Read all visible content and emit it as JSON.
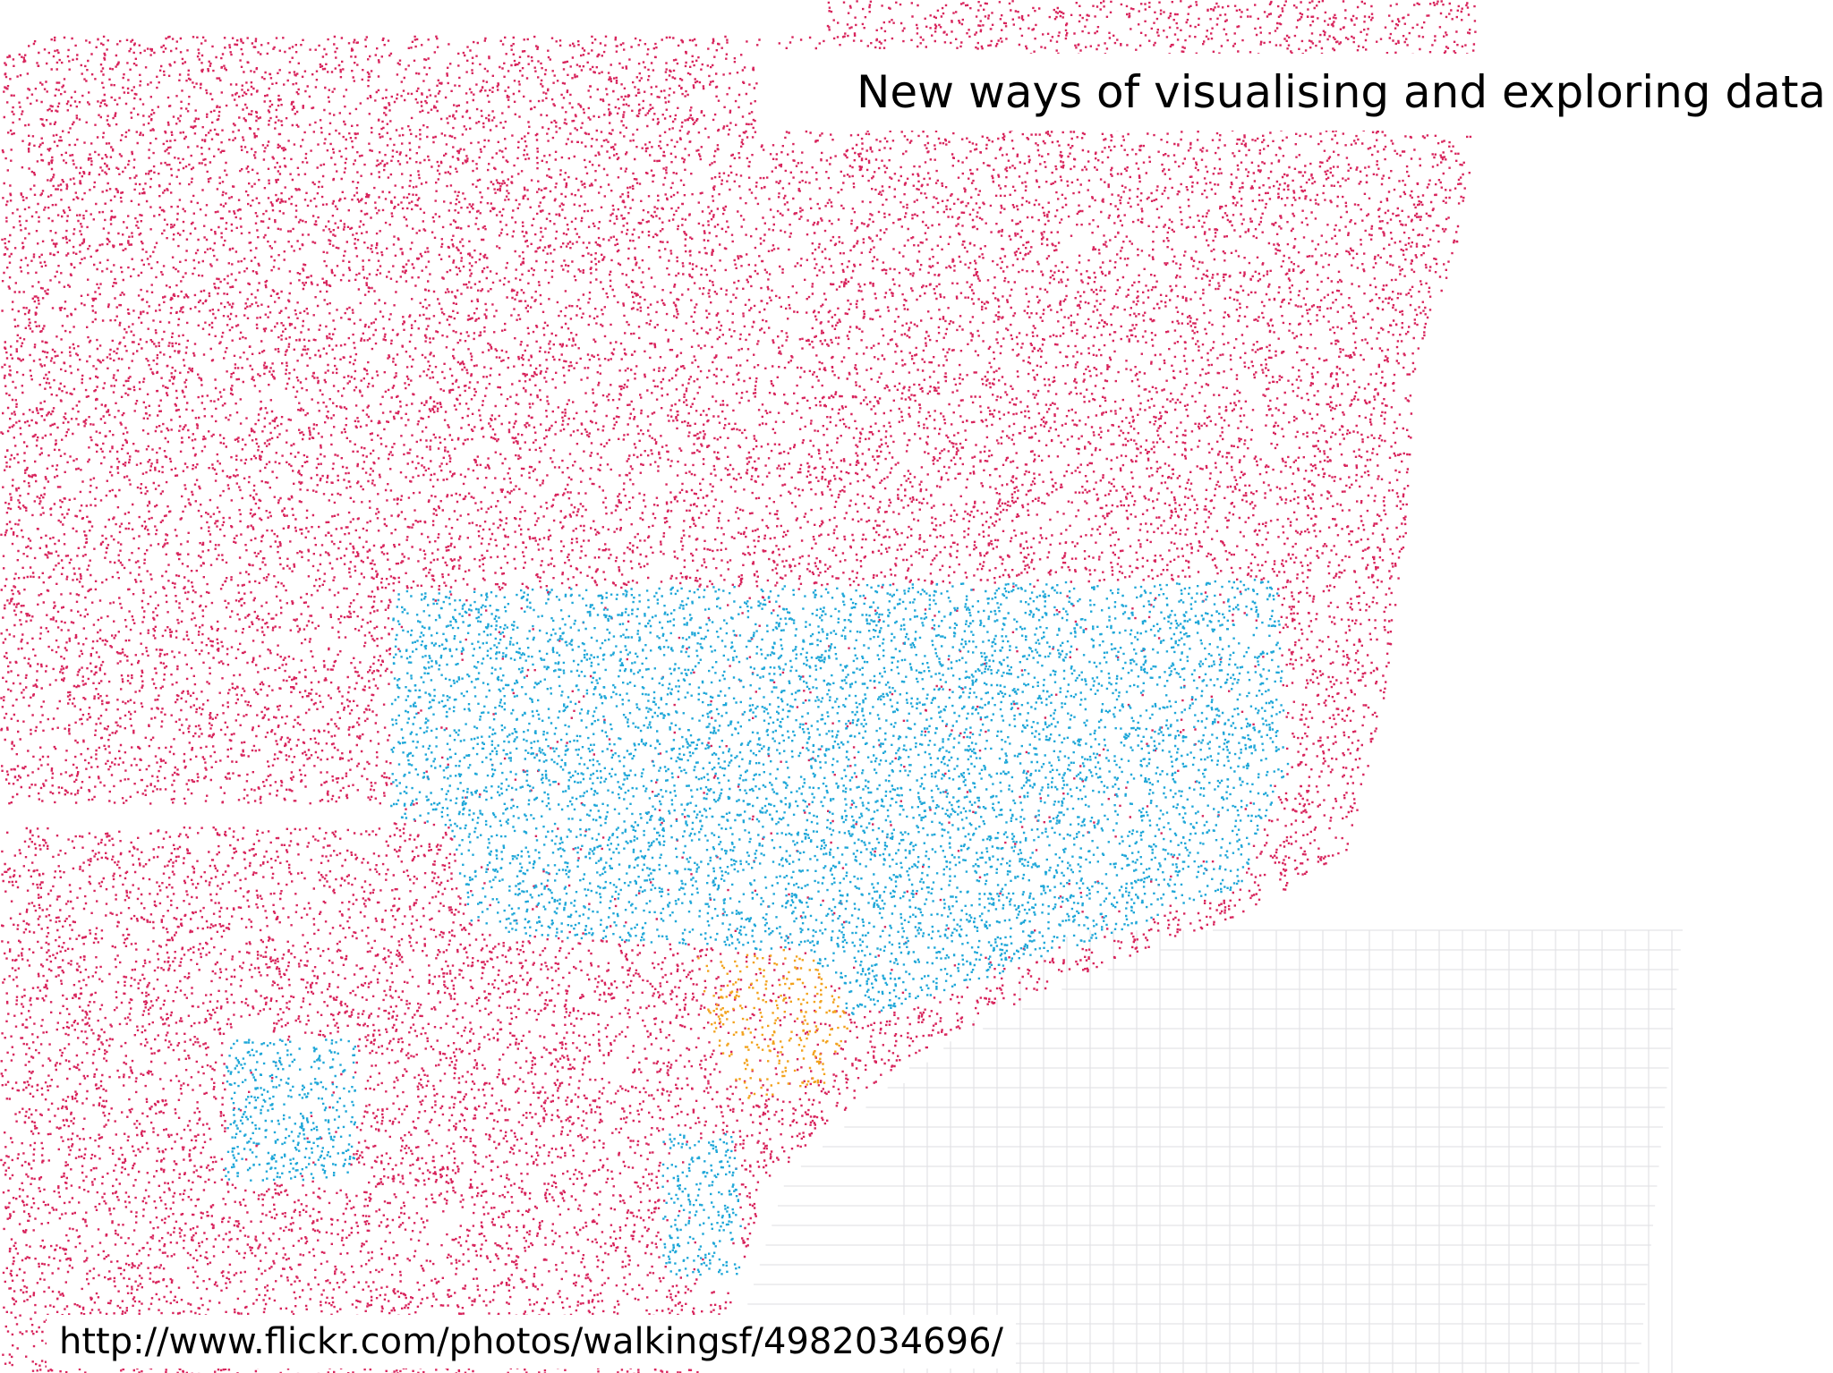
{
  "title": "New ways of visualising and exploring data",
  "source_url": "http://www.flickr.com/photos/walkingsf/4982034696/"
}
